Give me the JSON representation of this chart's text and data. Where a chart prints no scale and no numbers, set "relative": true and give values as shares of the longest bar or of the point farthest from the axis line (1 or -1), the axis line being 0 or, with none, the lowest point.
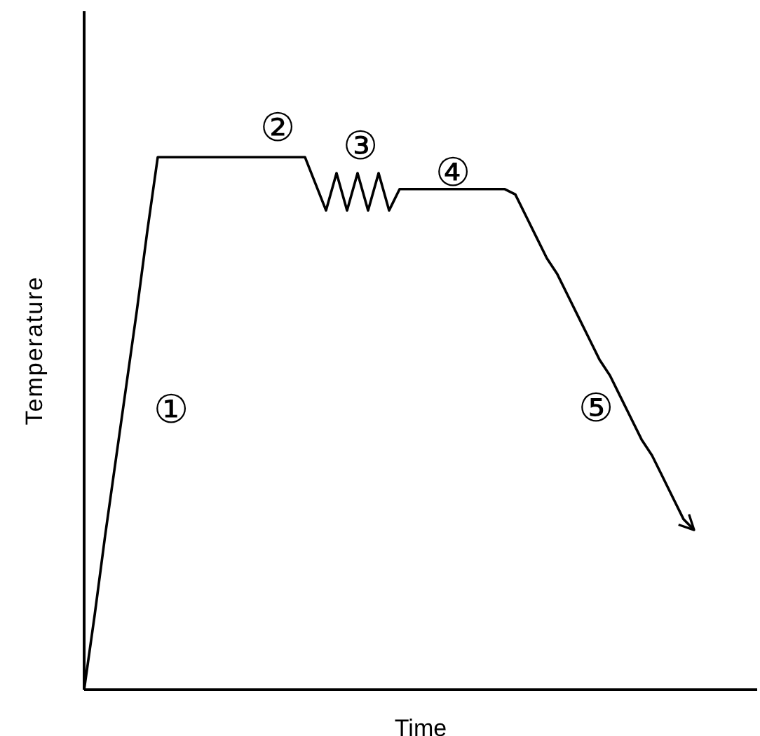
{
  "chart_data": {
    "type": "line",
    "relative": true,
    "xlabel": "Time",
    "ylabel": "Temperature",
    "color": "#000000",
    "marker": "none",
    "line_style": "solid",
    "grid": false,
    "legend": false,
    "categories": [
      null,
      null,
      null,
      null,
      null,
      null,
      null,
      null,
      null,
      null,
      null,
      null,
      null,
      null,
      null,
      null,
      null,
      null,
      null,
      null,
      null,
      null,
      null,
      null,
      null,
      null,
      null,
      null,
      null,
      null,
      null,
      null,
      null,
      null,
      null,
      null,
      null,
      null,
      null,
      null,
      null,
      null,
      null,
      null,
      null,
      null,
      null,
      null,
      null,
      null,
      null,
      null,
      null,
      null,
      null,
      null,
      null,
      null,
      null,
      null,
      null,
      null,
      null,
      null,
      null
    ],
    "values": [
      0,
      0.14,
      0.29,
      0.43,
      0.57,
      0.71,
      0.86,
      1,
      1,
      1,
      1,
      1,
      1,
      1,
      1,
      1,
      1,
      1,
      1,
      1,
      1,
      1,
      0.95,
      0.9,
      0.97,
      0.9,
      0.97,
      0.9,
      0.97,
      0.9,
      0.94,
      0.94,
      0.94,
      0.94,
      0.94,
      0.94,
      0.94,
      0.94,
      0.94,
      0.94,
      0.94,
      0.93,
      0.89,
      0.85,
      0.81,
      0.78,
      0.74,
      0.7,
      0.66,
      0.62,
      0.59,
      0.55,
      0.51,
      0.47,
      0.44,
      0.4,
      0.36,
      0.32,
      0.3,
      null,
      null,
      null,
      null,
      null,
      null
    ],
    "annotations": [
      "①",
      "②",
      "③",
      "④",
      "⑤"
    ]
  }
}
